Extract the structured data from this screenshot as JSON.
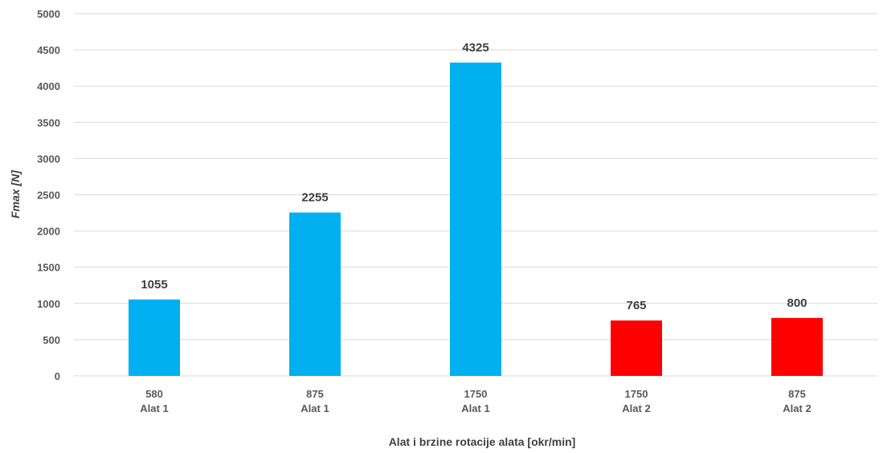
{
  "chart_data": {
    "type": "bar",
    "categories": [
      {
        "line1": "580",
        "line2": "Alat 1"
      },
      {
        "line1": "875",
        "line2": "Alat 1"
      },
      {
        "line1": "1750",
        "line2": "Alat 1"
      },
      {
        "line1": "1750",
        "line2": "Alat 2"
      },
      {
        "line1": "875",
        "line2": "Alat 2"
      }
    ],
    "values": [
      1055,
      2255,
      4325,
      765,
      800
    ],
    "bar_colors": [
      "#00b0f0",
      "#00b0f0",
      "#00b0f0",
      "#ff0000",
      "#ff0000"
    ],
    "xlabel": "Alat i brzine rotacije alata [okr/min]",
    "ylabel": "Fmax [N]",
    "ylim": [
      0,
      5000
    ],
    "yticks": [
      0,
      500,
      1000,
      1500,
      2000,
      2500,
      3000,
      3500,
      4000,
      4500,
      5000
    ],
    "grid": true,
    "data_labels": true
  }
}
